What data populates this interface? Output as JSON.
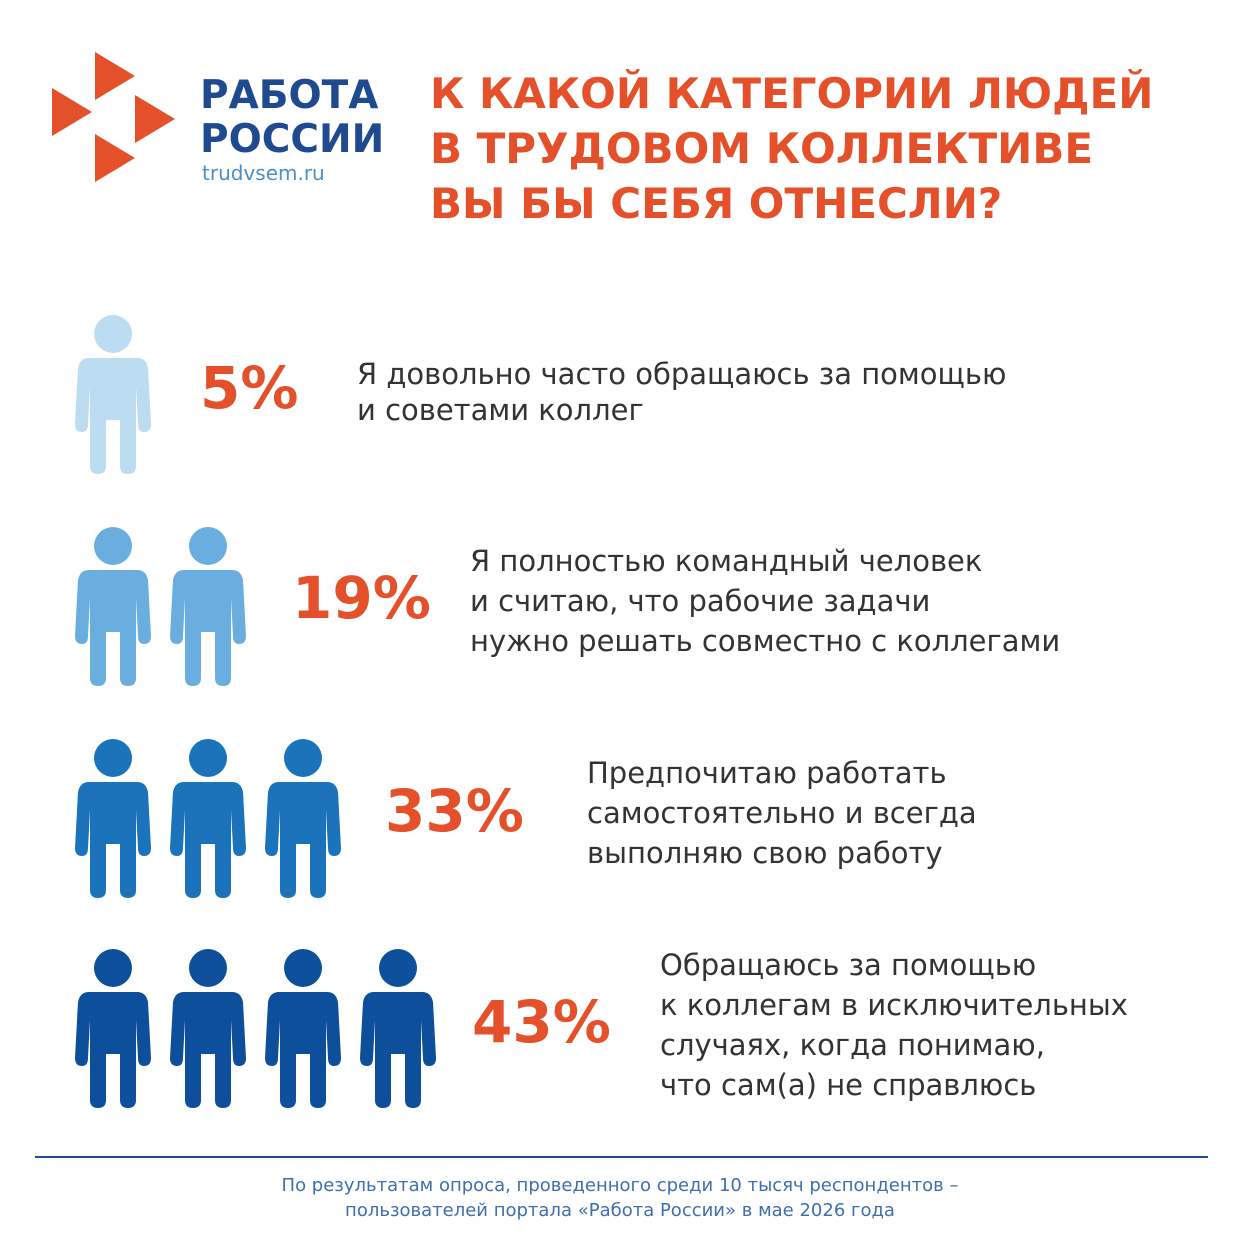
{
  "header": {
    "brand_lines": [
      "РАБОТА",
      "РОССИИ"
    ],
    "site": "trudvsem.ru",
    "title_lines": [
      "К КАКОЙ КАТЕГОРИИ ЛЮДЕЙ",
      "В ТРУДОВОМ КОЛЛЕКТИВЕ",
      "ВЫ БЫ СЕБЯ ОТНЕСЛИ?"
    ]
  },
  "items": [
    {
      "percent": "5%",
      "lines": [
        "Я довольно часто обращаюсь за помощью",
        "и советами коллег"
      ]
    },
    {
      "percent": "19%",
      "lines": [
        "Я полностью командный человек",
        "и считаю, что рабочие задачи",
        "нужно решать совместно с коллегами"
      ]
    },
    {
      "percent": "33%",
      "lines": [
        "Предпочитаю работать",
        "самостоятельно и всегда",
        "выполняю свою работу"
      ]
    },
    {
      "percent": "43%",
      "lines": [
        "Обращаюсь за помощью",
        "к коллегам в исключительных",
        "случаях, когда понимаю,",
        "что сам(а) не справлюсь"
      ]
    }
  ],
  "footer": {
    "lines": [
      "По результатам опроса, проведенного среди 10 тысяч респондентов –",
      "пользователей портала «Работа России» в мае 2026 года"
    ]
  }
}
